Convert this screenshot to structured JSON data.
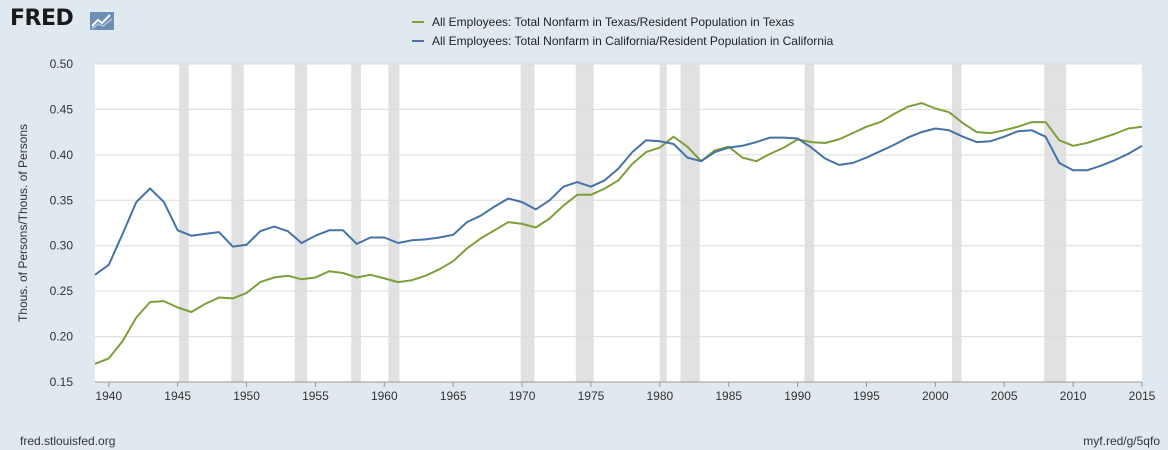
{
  "branding": {
    "logo_text": "FRED",
    "logo_icon": "line-chart-icon"
  },
  "footer": {
    "source": "fred.stlouisfed.org",
    "short_link": "myf.red/g/5qfo"
  },
  "colors": {
    "texas": "#7d9f3b",
    "california": "#4572a7",
    "recession": "#e1e1e1",
    "grid": "#dcdcdc",
    "background": "#e1e9f0"
  },
  "chart_data": {
    "type": "line",
    "title": "",
    "xlabel": "",
    "ylabel": "Thous. of Persons/Thous. of Persons",
    "xlim": [
      1939,
      2015
    ],
    "ylim": [
      0.15,
      0.5
    ],
    "x_ticks": [
      "1940",
      "1945",
      "1950",
      "1955",
      "1960",
      "1965",
      "1970",
      "1975",
      "1980",
      "1985",
      "1990",
      "1995",
      "2000",
      "2005",
      "2010",
      "2015"
    ],
    "y_ticks": [
      "0.15",
      "0.20",
      "0.25",
      "0.30",
      "0.35",
      "0.40",
      "0.45",
      "0.50"
    ],
    "grid": true,
    "legend_position": "top-center",
    "recessions": [
      [
        1945.1,
        1945.8
      ],
      [
        1948.9,
        1949.8
      ],
      [
        1953.5,
        1954.4
      ],
      [
        1957.6,
        1958.3
      ],
      [
        1960.3,
        1961.1
      ],
      [
        1969.9,
        1970.9
      ],
      [
        1973.9,
        1975.2
      ],
      [
        1980.0,
        1980.5
      ],
      [
        1981.5,
        1982.9
      ],
      [
        1990.5,
        1991.2
      ],
      [
        2001.2,
        2001.9
      ],
      [
        2007.9,
        2009.5
      ]
    ],
    "x": [
      1939,
      1940,
      1941,
      1942,
      1943,
      1944,
      1945,
      1946,
      1947,
      1948,
      1949,
      1950,
      1951,
      1952,
      1953,
      1954,
      1955,
      1956,
      1957,
      1958,
      1959,
      1960,
      1961,
      1962,
      1963,
      1964,
      1965,
      1966,
      1967,
      1968,
      1969,
      1970,
      1971,
      1972,
      1973,
      1974,
      1975,
      1976,
      1977,
      1978,
      1979,
      1980,
      1981,
      1982,
      1983,
      1984,
      1985,
      1986,
      1987,
      1988,
      1989,
      1990,
      1991,
      1992,
      1993,
      1994,
      1995,
      1996,
      1997,
      1998,
      1999,
      2000,
      2001,
      2002,
      2003,
      2004,
      2005,
      2006,
      2007,
      2008,
      2009,
      2010,
      2011,
      2012,
      2013,
      2014,
      2015
    ],
    "series": [
      {
        "name": "All Employees: Total Nonfarm in Texas/Resident Population in Texas",
        "values": [
          0.17,
          0.176,
          0.195,
          0.221,
          0.238,
          0.239,
          0.232,
          0.227,
          0.236,
          0.243,
          0.242,
          0.248,
          0.26,
          0.265,
          0.267,
          0.263,
          0.265,
          0.272,
          0.27,
          0.265,
          0.268,
          0.264,
          0.26,
          0.262,
          0.267,
          0.274,
          0.283,
          0.297,
          0.308,
          0.317,
          0.326,
          0.324,
          0.32,
          0.33,
          0.344,
          0.356,
          0.356,
          0.363,
          0.372,
          0.39,
          0.403,
          0.408,
          0.42,
          0.409,
          0.393,
          0.405,
          0.409,
          0.397,
          0.393,
          0.401,
          0.408,
          0.417,
          0.414,
          0.413,
          0.417,
          0.424,
          0.431,
          0.436,
          0.445,
          0.453,
          0.457,
          0.451,
          0.447,
          0.435,
          0.425,
          0.424,
          0.427,
          0.431,
          0.436,
          0.436,
          0.416,
          0.41,
          0.413,
          0.418,
          0.423,
          0.429,
          0.431
        ]
      },
      {
        "name": "All Employees: Total Nonfarm in California/Resident Population in California",
        "values": [
          0.268,
          0.279,
          0.313,
          0.348,
          0.363,
          0.348,
          0.317,
          0.311,
          0.313,
          0.315,
          0.299,
          0.301,
          0.316,
          0.321,
          0.316,
          0.303,
          0.311,
          0.317,
          0.317,
          0.302,
          0.309,
          0.309,
          0.303,
          0.306,
          0.307,
          0.309,
          0.312,
          0.326,
          0.333,
          0.343,
          0.352,
          0.348,
          0.34,
          0.35,
          0.365,
          0.37,
          0.365,
          0.372,
          0.385,
          0.403,
          0.416,
          0.415,
          0.412,
          0.397,
          0.393,
          0.403,
          0.408,
          0.41,
          0.414,
          0.419,
          0.419,
          0.418,
          0.408,
          0.396,
          0.389,
          0.391,
          0.397,
          0.404,
          0.411,
          0.419,
          0.425,
          0.429,
          0.427,
          0.42,
          0.414,
          0.415,
          0.42,
          0.426,
          0.427,
          0.42,
          0.391,
          0.383,
          0.383,
          0.388,
          0.394,
          0.401,
          0.41
        ]
      }
    ]
  }
}
